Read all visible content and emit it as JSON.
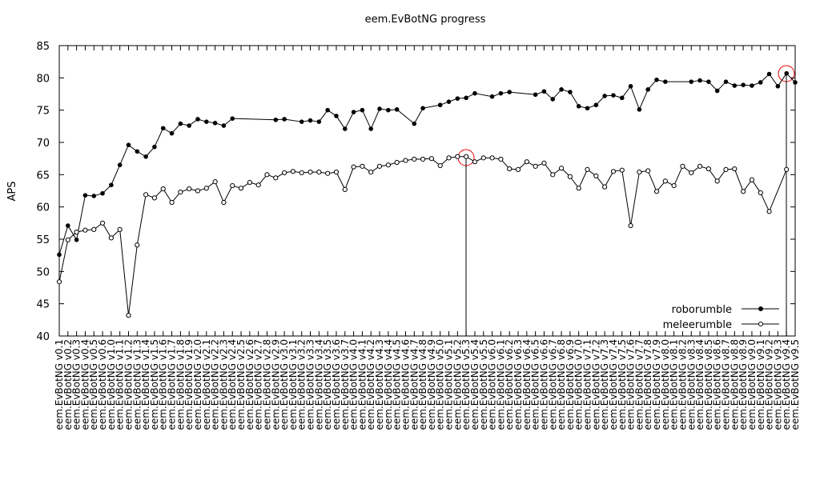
{
  "chart_data": {
    "type": "line",
    "title": "eem.EvBotNG progress",
    "y_label": "APS",
    "categories": [
      "eem.EvBotNG v0.1",
      "eem.EvBotNG v0.2",
      "eem.EvBotNG v0.3",
      "eem.EvBotNG v0.4",
      "eem.EvBotNG v0.5",
      "eem.EvBotNG v0.6",
      "eem.EvBotNG v1.0",
      "eem.EvBotNG v1.1",
      "eem.EvBotNG v1.2",
      "eem.EvBotNG v1.3",
      "eem.EvBotNG v1.4",
      "eem.EvBotNG v1.5",
      "eem.EvBotNG v1.6",
      "eem.EvBotNG v1.7",
      "eem.EvBotNG v1.8",
      "eem.EvBotNG v1.9",
      "eem.EvBotNG v2.0",
      "eem.EvBotNG v2.1",
      "eem.EvBotNG v2.2",
      "eem.EvBotNG v2.3",
      "eem.EvBotNG v2.4",
      "eem.EvBotNG v2.5",
      "eem.EvBotNG v2.6",
      "eem.EvBotNG v2.7",
      "eem.EvBotNG v2.8",
      "eem.EvBotNG v2.9",
      "eem.EvBotNG v3.0",
      "eem.EvBotNG v3.1",
      "eem.EvBotNG v3.2",
      "eem.EvBotNG v3.3",
      "eem.EvBotNG v3.4",
      "eem.EvBotNG v3.5",
      "eem.EvBotNG v3.6",
      "eem.EvBotNG v3.7",
      "eem.EvBotNG v4.0",
      "eem.EvBotNG v4.1",
      "eem.EvBotNG v4.2",
      "eem.EvBotNG v4.3",
      "eem.EvBotNG v4.4",
      "eem.EvBotNG v4.5",
      "eem.EvBotNG v4.6",
      "eem.EvBotNG v4.7",
      "eem.EvBotNG v4.8",
      "eem.EvBotNG v4.9",
      "eem.EvBotNG v5.0",
      "eem.EvBotNG v5.1",
      "eem.EvBotNG v5.2",
      "eem.EvBotNG v5.3",
      "eem.EvBotNG v5.4",
      "eem.EvBotNG v5.5",
      "eem.EvBotNG v6.0",
      "eem.EvBotNG v6.1",
      "eem.EvBotNG v6.2",
      "eem.EvBotNG v6.3",
      "eem.EvBotNG v6.4",
      "eem.EvBotNG v6.5",
      "eem.EvBotNG v6.6",
      "eem.EvBotNG v6.7",
      "eem.EvBotNG v6.8",
      "eem.EvBotNG v6.9",
      "eem.EvBotNG v7.0",
      "eem.EvBotNG v7.1",
      "eem.EvBotNG v7.2",
      "eem.EvBotNG v7.3",
      "eem.EvBotNG v7.4",
      "eem.EvBotNG v7.5",
      "eem.EvBotNG v7.6",
      "eem.EvBotNG v7.7",
      "eem.EvBotNG v7.8",
      "eem.EvBotNG v7.9",
      "eem.EvBotNG v8.0",
      "eem.EvBotNG v8.1",
      "eem.EvBotNG v8.2",
      "eem.EvBotNG v8.3",
      "eem.EvBotNG v8.4",
      "eem.EvBotNG v8.5",
      "eem.EvBotNG v8.6",
      "eem.EvBotNG v8.7",
      "eem.EvBotNG v8.8",
      "eem.EvBotNG v8.9",
      "eem.EvBotNG v9.0",
      "eem.EvBotNG v9.1",
      "eem.EvBotNG v9.2",
      "eem.EvBotNG v9.3",
      "eem.EvBotNG v9.4",
      "eem.EvBotNG v9.5"
    ],
    "series": [
      {
        "name": "roborumble",
        "color": "#000000",
        "marker": "filled",
        "values": [
          52.6,
          57.1,
          54.9,
          61.8,
          61.7,
          62.1,
          63.4,
          66.5,
          69.6,
          68.6,
          67.8,
          69.3,
          72.2,
          71.4,
          72.9,
          72.6,
          73.6,
          73.2,
          73.0,
          72.6,
          73.7,
          null,
          null,
          null,
          null,
          73.5,
          73.6,
          null,
          73.2,
          73.4,
          73.2,
          75.0,
          74.1,
          72.1,
          74.7,
          75.0,
          72.1,
          75.2,
          75.0,
          75.1,
          null,
          72.9,
          75.3,
          null,
          75.8,
          76.3,
          76.8,
          76.9,
          77.6,
          null,
          77.1,
          77.6,
          77.8,
          null,
          null,
          77.4,
          77.9,
          76.7,
          78.2,
          77.8,
          75.6,
          75.3,
          75.8,
          77.2,
          77.3,
          76.9,
          78.7,
          75.1,
          78.2,
          79.7,
          79.4,
          null,
          null,
          79.4,
          79.6,
          79.4,
          78.0,
          79.4,
          78.8,
          78.9,
          78.8,
          79.3,
          80.6,
          78.7,
          80.7,
          79.3
        ]
      },
      {
        "name": "meleerumble",
        "color": "#000000",
        "marker": "open",
        "values": [
          48.4,
          54.9,
          56.1,
          56.4,
          56.5,
          57.5,
          55.2,
          56.5,
          43.2,
          54.1,
          61.9,
          61.4,
          62.8,
          60.7,
          62.3,
          62.8,
          62.5,
          62.9,
          63.9,
          60.7,
          63.3,
          62.9,
          63.8,
          63.4,
          65.0,
          64.5,
          65.3,
          65.5,
          65.3,
          65.4,
          65.4,
          65.2,
          65.4,
          62.7,
          66.2,
          66.3,
          65.4,
          66.3,
          66.5,
          66.9,
          67.2,
          67.4,
          67.4,
          67.5,
          66.4,
          67.6,
          67.8,
          67.8,
          67.0,
          67.6,
          67.6,
          67.4,
          65.9,
          65.8,
          67.0,
          66.3,
          66.8,
          65.0,
          66.0,
          64.7,
          62.9,
          65.8,
          64.8,
          63.1,
          65.5,
          65.7,
          57.1,
          65.4,
          65.6,
          62.4,
          64.0,
          63.3,
          66.3,
          65.3,
          66.3,
          65.9,
          64.0,
          65.8,
          65.9,
          62.4,
          64.2,
          62.2,
          59.3,
          null,
          65.8,
          null
        ]
      }
    ],
    "ylim": [
      40,
      85
    ],
    "yticks": [
      40,
      45,
      50,
      55,
      60,
      65,
      70,
      75,
      80,
      85
    ],
    "grid": false,
    "legend": "bottom right"
  }
}
